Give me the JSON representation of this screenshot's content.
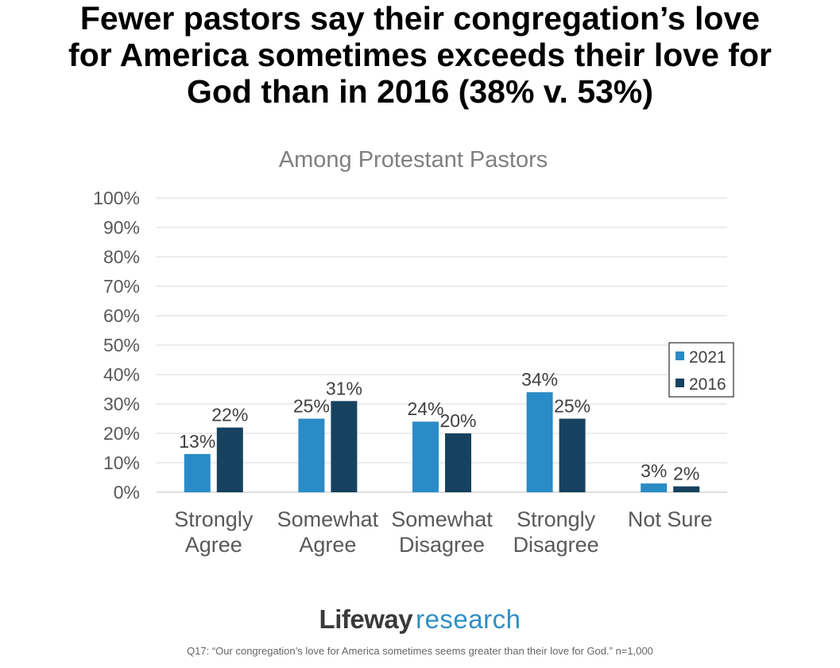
{
  "headline": {
    "lines": [
      "Fewer pastors say their congregation’s love",
      "for America sometimes exceeds their love for",
      "God than in 2016 (38% v. 53%)"
    ]
  },
  "chart_data": {
    "type": "bar",
    "title": "Among Protestant Pastors",
    "categories": [
      [
        "Strongly",
        "Agree"
      ],
      [
        "Somewhat",
        "Agree"
      ],
      [
        "Somewhat",
        "Disagree"
      ],
      [
        "Strongly",
        "Disagree"
      ],
      [
        "Not Sure"
      ]
    ],
    "series": [
      {
        "name": "2021",
        "color": "#2a8bc6",
        "values": [
          13,
          25,
          24,
          34,
          3
        ]
      },
      {
        "name": "2016",
        "color": "#16425f",
        "values": [
          22,
          31,
          20,
          25,
          2
        ]
      }
    ],
    "ylim": [
      0,
      100
    ],
    "yticks": [
      0,
      10,
      20,
      30,
      40,
      50,
      60,
      70,
      80,
      90,
      100
    ],
    "ytick_suffix": "%",
    "data_label_suffix": "%",
    "xlabel": "",
    "ylabel": "",
    "grid": true,
    "legend_position": "right"
  },
  "brand": {
    "name_bold": "Lifeway",
    "name_light": "research"
  },
  "footnote": "Q17: “Our congregation’s love for America sometimes seems greater than their love for God.”  n=1,000"
}
